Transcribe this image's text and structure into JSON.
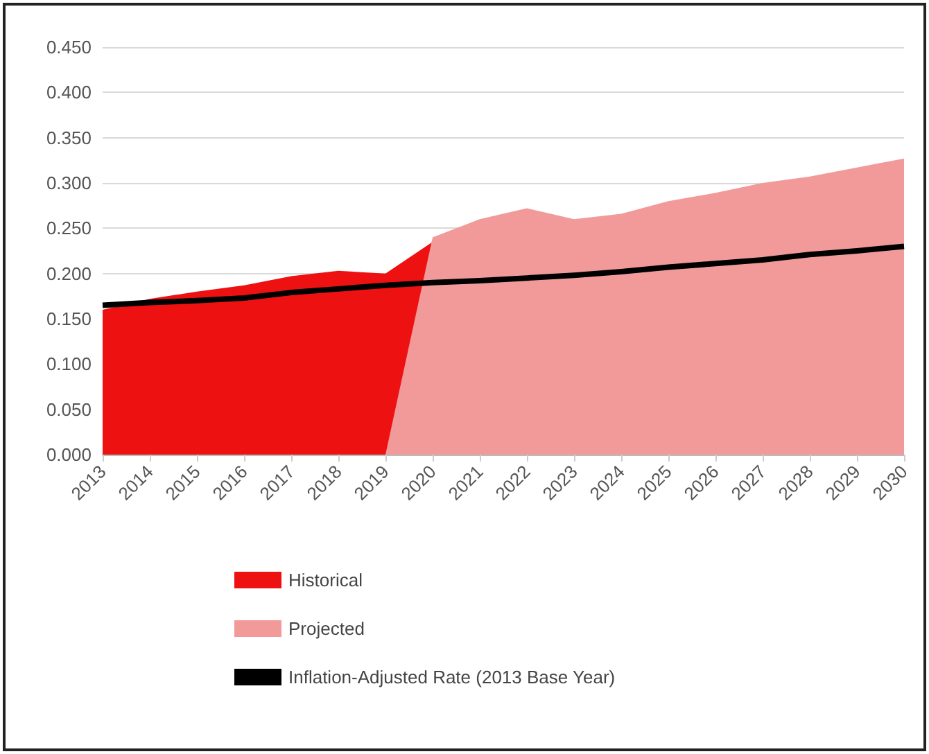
{
  "chart_data": {
    "type": "area",
    "categories": [
      "2013",
      "2014",
      "2015",
      "2016",
      "2017",
      "2018",
      "2019",
      "2020",
      "2021",
      "2022",
      "2023",
      "2024",
      "2025",
      "2026",
      "2027",
      "2028",
      "2029",
      "2030"
    ],
    "series": [
      {
        "name": "Historical",
        "color": "#ee1111",
        "values": [
          0.16,
          0.172,
          0.18,
          0.187,
          0.197,
          0.203,
          0.2,
          0.235,
          null,
          null,
          null,
          null,
          null,
          null,
          null,
          null,
          null,
          null
        ]
      },
      {
        "name": "Projected",
        "color": "#f29a9a",
        "values": [
          null,
          null,
          null,
          null,
          null,
          null,
          0,
          0.24,
          0.26,
          0.272,
          0.26,
          0.266,
          0.28,
          0.289,
          0.3,
          0.307,
          0.317,
          0.327
        ]
      },
      {
        "name": "Inflation-Adjusted Rate (2013 Base Year)",
        "type": "line",
        "color": "#000000",
        "values": [
          0.165,
          0.168,
          0.17,
          0.173,
          0.179,
          0.183,
          0.187,
          0.19,
          0.192,
          0.195,
          0.198,
          0.202,
          0.207,
          0.211,
          0.215,
          0.221,
          0.225,
          0.23
        ]
      }
    ],
    "ylim": [
      0,
      0.45
    ],
    "yticks": [
      {
        "value": 0,
        "label": "0.000"
      },
      {
        "value": 0.05,
        "label": "0.050"
      },
      {
        "value": 0.1,
        "label": "0.100"
      },
      {
        "value": 0.15,
        "label": "0.150"
      },
      {
        "value": 0.2,
        "label": "0.200"
      },
      {
        "value": 0.25,
        "label": "0.250"
      },
      {
        "value": 0.3,
        "label": "0.300"
      },
      {
        "value": 0.35,
        "label": "0.350"
      },
      {
        "value": 0.4,
        "label": "0.400"
      },
      {
        "value": 0.45,
        "label": "0.450"
      }
    ],
    "grid": "y",
    "legend": "bottom",
    "marker": "none"
  }
}
